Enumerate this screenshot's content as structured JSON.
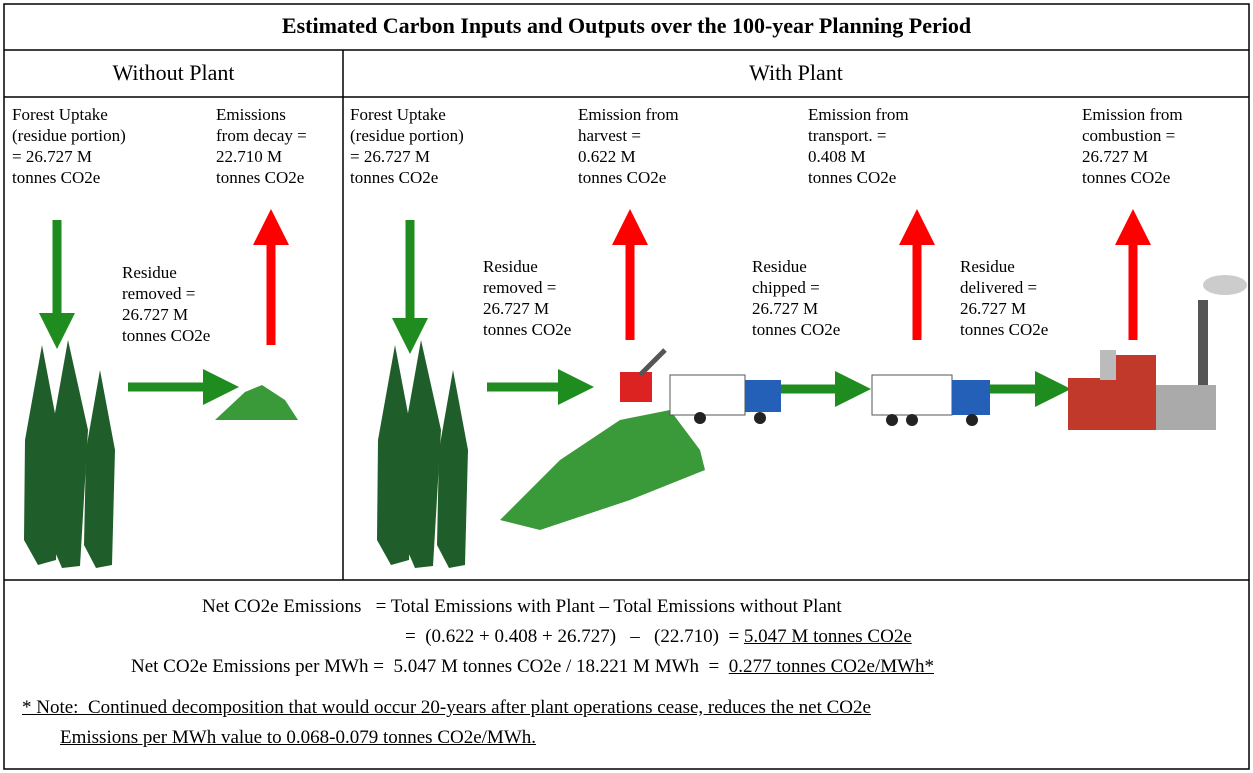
{
  "title": "Estimated Carbon Inputs and Outputs over the 100-year Planning Period",
  "panels": {
    "without": "Without Plant",
    "with": "With Plant"
  },
  "labels": [
    {
      "lines": [
        "Forest Uptake",
        "(residue portion)",
        "= 26.727 M",
        "tonnes CO2e"
      ]
    },
    {
      "lines": [
        "Emissions",
        "from decay =",
        "22.710 M",
        "tonnes CO2e"
      ]
    },
    {
      "lines": [
        "Residue",
        "removed =",
        "26.727 M",
        "tonnes CO2e"
      ]
    },
    {
      "lines": [
        "Forest Uptake",
        "(residue portion)",
        "= 26.727 M",
        "tonnes CO2e"
      ]
    },
    {
      "lines": [
        "Emission from",
        "harvest =",
        "0.622 M",
        "tonnes CO2e"
      ]
    },
    {
      "lines": [
        "Emission from",
        "transport. =",
        "0.408 M",
        "tonnes CO2e"
      ]
    },
    {
      "lines": [
        "Emission from",
        "combustion =",
        "26.727 M",
        "tonnes CO2e"
      ]
    },
    {
      "lines": [
        "Residue",
        "removed =",
        "26.727 M",
        "tonnes CO2e"
      ]
    },
    {
      "lines": [
        "Residue",
        "chipped =",
        "26.727 M",
        "tonnes CO2e"
      ]
    },
    {
      "lines": [
        "Residue",
        "delivered =",
        "26.727 M",
        "tonnes CO2e"
      ]
    }
  ],
  "summary": {
    "line1": "Net CO2e Emissions   = Total Emissions with Plant – Total Emissions without Plant",
    "line2": "=  (0.622 + 0.408 + 26.727)   –   (22.710)  = ",
    "line2_result": "5.047 M tonnes CO2e",
    "line3": "Net CO2e Emissions per MWh =  5.047 M tonnes CO2e / 18.221 M MWh  =  ",
    "line3_result": "0.277 tonnes CO2e/MWh*",
    "note_line1": "* Note:  Continued decomposition that would occur 20-years after plant operations cease, reduces the net CO2e",
    "note_line2": "Emissions per MWh value to 0.068-0.079 tonnes CO2e/MWh."
  }
}
